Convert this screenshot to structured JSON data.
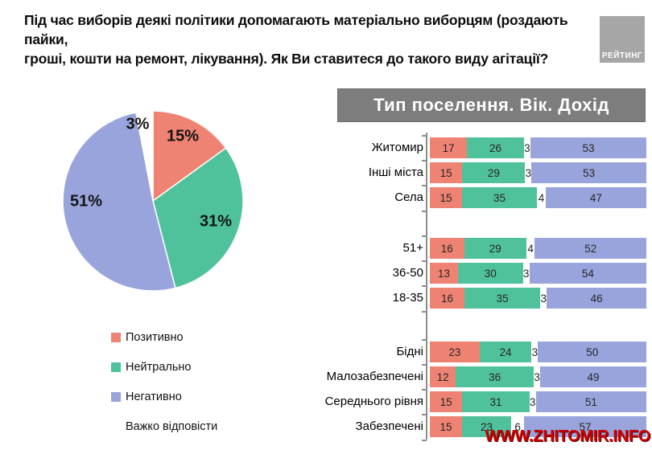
{
  "title": "Під час виборів деякі політики допомагають матеріально виборцям (роздають пайки,\nгроші, кошти на ремонт, лікування). Як Ви ставитеся до такого виду агітації?",
  "logo": "РЕЙТИНГ",
  "watermark": "WWW.ZHITOMIR.INFO",
  "colors": {
    "positive": "#EF8373",
    "neutral": "#4FC29B",
    "negative": "#9AA4DC",
    "undecided": "#FFFFFF",
    "header_bg": "#7D7D7D",
    "logo_bg": "#A6A6A6",
    "axis": "#8C8C8C",
    "watermark": "#CC0000"
  },
  "legend": {
    "items": [
      {
        "label": "Позитивно",
        "color": "#EF8373"
      },
      {
        "label": "Нейтрально",
        "color": "#4FC29B"
      },
      {
        "label": "Негативно",
        "color": "#9AA4DC"
      },
      {
        "label": "Важко відповісти",
        "color": "#FFFFFF"
      }
    ]
  },
  "bar_header": "Тип поселення. Вік. Дохід",
  "chart_data": [
    {
      "type": "pie",
      "labels": [
        "Позитивно",
        "Нейтрально",
        "Негативно",
        "Важко відповісти"
      ],
      "values": [
        15,
        31,
        51,
        3
      ],
      "data_labels": [
        "15%",
        "31%",
        "51%",
        "3%"
      ],
      "colors": [
        "#EF8373",
        "#4FC29B",
        "#9AA4DC",
        "#FFFFFF"
      ],
      "start_angle_deg": 0,
      "direction": "clockwise",
      "legend_position": "bottom-left"
    },
    {
      "type": "bar",
      "variant": "horizontal-stacked",
      "title": "Тип поселення. Вік. Дохід",
      "series": [
        "Позитивно",
        "Нейтрально",
        "Важко відповісти",
        "Негативно"
      ],
      "series_colors": [
        "#EF8373",
        "#4FC29B",
        "#FFFFFF",
        "#9AA4DC"
      ],
      "x_max": 100,
      "groups": [
        {
          "rows": [
            {
              "label": "Житомир",
              "values": [
                17,
                26,
                3,
                53
              ]
            },
            {
              "label": "Інші міста",
              "values": [
                15,
                29,
                3,
                53
              ]
            },
            {
              "label": "Села",
              "values": [
                15,
                35,
                4,
                47
              ]
            }
          ]
        },
        {
          "rows": [
            {
              "label": "51+",
              "values": [
                16,
                29,
                4,
                52
              ]
            },
            {
              "label": "36-50",
              "values": [
                13,
                30,
                3,
                54
              ]
            },
            {
              "label": "18-35",
              "values": [
                16,
                35,
                3,
                46
              ]
            }
          ]
        },
        {
          "rows": [
            {
              "label": "Бідні",
              "values": [
                23,
                24,
                3,
                50
              ]
            },
            {
              "label": "Малозабезпечені",
              "values": [
                12,
                36,
                3,
                49
              ]
            },
            {
              "label": "Середнього рівня",
              "values": [
                15,
                31,
                3,
                51
              ]
            },
            {
              "label": "Забезпечені",
              "values": [
                15,
                23,
                6,
                57
              ]
            }
          ]
        }
      ]
    }
  ]
}
